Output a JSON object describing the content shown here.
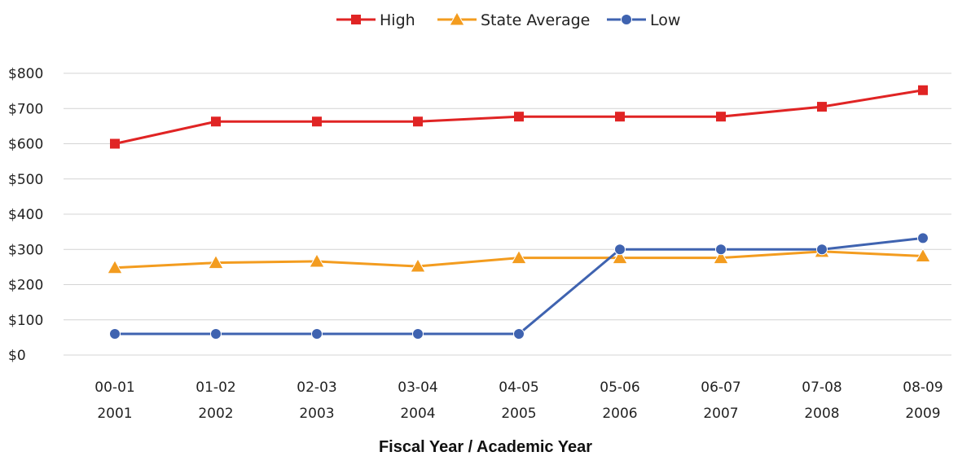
{
  "chart_data": {
    "type": "line",
    "title": "",
    "xlabel": "Fiscal Year / Academic Year",
    "ylabel": "",
    "categories": [
      [
        "00-01",
        "2001"
      ],
      [
        "01-02",
        "2002"
      ],
      [
        "02-03",
        "2003"
      ],
      [
        "03-04",
        "2004"
      ],
      [
        "04-05",
        "2005"
      ],
      [
        "05-06",
        "2006"
      ],
      [
        "06-07",
        "2007"
      ],
      [
        "07-08",
        "2008"
      ],
      [
        "08-09",
        "2009"
      ]
    ],
    "y_ticks": [
      "$0",
      "$100",
      "$200",
      "$300",
      "$400",
      "$500",
      "$600",
      "$700",
      "$800"
    ],
    "ylim": [
      0,
      800
    ],
    "grid": "horizontal",
    "legend_position": "top-center",
    "series": [
      {
        "name": "High",
        "color": "#e02424",
        "marker": "square",
        "values": [
          600,
          663,
          663,
          663,
          677,
          677,
          677,
          705,
          752
        ]
      },
      {
        "name": "State Average",
        "color": "#f39c1f",
        "marker": "triangle",
        "values": [
          248,
          262,
          266,
          252,
          276,
          276,
          276,
          294,
          281
        ]
      },
      {
        "name": "Low",
        "color": "#3f63b0",
        "marker": "circle",
        "values": [
          60,
          60,
          60,
          60,
          60,
          300,
          300,
          300,
          332
        ]
      }
    ]
  }
}
